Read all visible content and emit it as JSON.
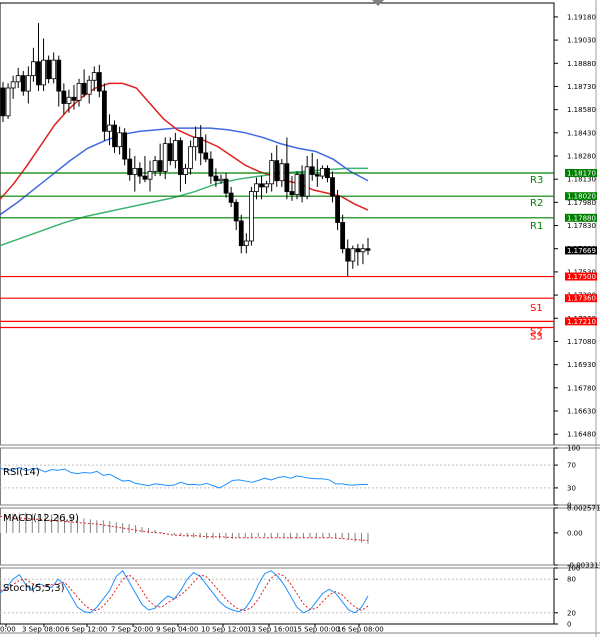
{
  "chart_data": [
    {
      "panel": "price",
      "type": "candlestick",
      "y_ticks": [
        "1.19180",
        "1.19030",
        "1.18880",
        "1.18730",
        "1.18580",
        "1.18430",
        "1.18280",
        "1.18130",
        "1.17980",
        "1.17830",
        "1.17680",
        "1.17530",
        "1.17380",
        "1.17230",
        "1.17080",
        "1.16930",
        "1.16780",
        "1.16630",
        "1.16480"
      ],
      "ylim": [
        1.1641,
        1.1927
      ],
      "current_price": "1.17669",
      "candles": [
        [
          1.1872,
          1.1876,
          1.185,
          1.1854
        ],
        [
          1.1854,
          1.1875,
          1.1852,
          1.1872
        ],
        [
          1.1872,
          1.188,
          1.1865,
          1.1876
        ],
        [
          1.1876,
          1.1885,
          1.1872,
          1.188
        ],
        [
          1.188,
          1.1883,
          1.1867,
          1.187
        ],
        [
          1.187,
          1.1886,
          1.1862,
          1.188
        ],
        [
          1.188,
          1.1898,
          1.1876,
          1.1889
        ],
        [
          1.1889,
          1.1914,
          1.187,
          1.1874
        ],
        [
          1.1874,
          1.1904,
          1.187,
          1.189
        ],
        [
          1.189,
          1.1893,
          1.1875,
          1.1878
        ],
        [
          1.1878,
          1.1895,
          1.1875,
          1.189
        ],
        [
          1.189,
          1.1893,
          1.186,
          1.187
        ],
        [
          1.187,
          1.1875,
          1.1855,
          1.1862
        ],
        [
          1.1862,
          1.1871,
          1.1856,
          1.1866
        ],
        [
          1.1866,
          1.1874,
          1.1858,
          1.1864
        ],
        [
          1.1864,
          1.1878,
          1.186,
          1.1875
        ],
        [
          1.1875,
          1.1884,
          1.1866,
          1.1868
        ],
        [
          1.1868,
          1.188,
          1.1862,
          1.1877
        ],
        [
          1.1877,
          1.1886,
          1.187,
          1.1882
        ],
        [
          1.1882,
          1.1887,
          1.1866,
          1.187
        ],
        [
          1.187,
          1.1875,
          1.1838,
          1.1844
        ],
        [
          1.1844,
          1.1855,
          1.1835,
          1.1848
        ],
        [
          1.1848,
          1.1851,
          1.183,
          1.1834
        ],
        [
          1.1834,
          1.1847,
          1.1829,
          1.1843
        ],
        [
          1.1843,
          1.1846,
          1.1822,
          1.1826
        ],
        [
          1.1826,
          1.1833,
          1.1812,
          1.1816
        ],
        [
          1.1816,
          1.1828,
          1.1805,
          1.182
        ],
        [
          1.182,
          1.1824,
          1.181,
          1.1815
        ],
        [
          1.1815,
          1.1828,
          1.1811,
          1.1813
        ],
        [
          1.1813,
          1.1825,
          1.1805,
          1.1818
        ],
        [
          1.1818,
          1.1828,
          1.1815,
          1.1825
        ],
        [
          1.1825,
          1.1836,
          1.1815,
          1.1818
        ],
        [
          1.1818,
          1.184,
          1.1813,
          1.1836
        ],
        [
          1.1836,
          1.184,
          1.1822,
          1.1825
        ],
        [
          1.1825,
          1.1843,
          1.182,
          1.1838
        ],
        [
          1.1838,
          1.184,
          1.1805,
          1.1816
        ],
        [
          1.1816,
          1.1823,
          1.181,
          1.182
        ],
        [
          1.182,
          1.1838,
          1.1816,
          1.1834
        ],
        [
          1.1834,
          1.1847,
          1.1825,
          1.184
        ],
        [
          1.184,
          1.1848,
          1.1822,
          1.183
        ],
        [
          1.183,
          1.1842,
          1.1824,
          1.1826
        ],
        [
          1.1826,
          1.1831,
          1.181,
          1.1815
        ],
        [
          1.1815,
          1.182,
          1.1808,
          1.1812
        ],
        [
          1.1812,
          1.1816,
          1.181,
          1.1813
        ],
        [
          1.1813,
          1.1817,
          1.1801,
          1.1804
        ],
        [
          1.1804,
          1.1808,
          1.1795,
          1.1798
        ],
        [
          1.1798,
          1.18,
          1.178,
          1.1786
        ],
        [
          1.1786,
          1.179,
          1.1765,
          1.177
        ],
        [
          1.177,
          1.1778,
          1.1765,
          1.1773
        ],
        [
          1.1773,
          1.1808,
          1.177,
          1.1805
        ],
        [
          1.1805,
          1.1814,
          1.18,
          1.181
        ],
        [
          1.181,
          1.1815,
          1.18,
          1.1808
        ],
        [
          1.1808,
          1.1812,
          1.1804,
          1.181
        ],
        [
          1.181,
          1.183,
          1.1805,
          1.1825
        ],
        [
          1.1825,
          1.1835,
          1.1808,
          1.1812
        ],
        [
          1.1812,
          1.1826,
          1.1808,
          1.1823
        ],
        [
          1.1823,
          1.184,
          1.18,
          1.1805
        ],
        [
          1.1805,
          1.1815,
          1.1799,
          1.1803
        ],
        [
          1.1803,
          1.1818,
          1.18,
          1.1816
        ],
        [
          1.1816,
          1.1822,
          1.1798,
          1.1802
        ],
        [
          1.1802,
          1.1828,
          1.18,
          1.1821
        ],
        [
          1.1821,
          1.183,
          1.1812,
          1.1816
        ],
        [
          1.1816,
          1.1826,
          1.1808,
          1.1815
        ],
        [
          1.1815,
          1.1822,
          1.1813,
          1.182
        ],
        [
          1.182,
          1.1822,
          1.1811,
          1.1814
        ],
        [
          1.1814,
          1.1818,
          1.1798,
          1.1802
        ],
        [
          1.1802,
          1.1806,
          1.178,
          1.1785
        ],
        [
          1.1785,
          1.179,
          1.1765,
          1.1768
        ],
        [
          1.1768,
          1.1774,
          1.175,
          1.176
        ],
        [
          1.176,
          1.177,
          1.1755,
          1.1768
        ],
        [
          1.1768,
          1.1771,
          1.1757,
          1.1766
        ],
        [
          1.1766,
          1.1771,
          1.1758,
          1.1768
        ],
        [
          1.1768,
          1.1775,
          1.1764,
          1.1767
        ]
      ],
      "ma_fast": [
        1.18,
        1.181,
        1.1822,
        1.1835,
        1.1848,
        1.1858,
        1.1866,
        1.1872,
        1.1875,
        1.1875,
        1.1872,
        1.1862,
        1.1852,
        1.1845,
        1.1841,
        1.1838,
        1.1834,
        1.1828,
        1.1822,
        1.1818,
        1.1815,
        1.1812,
        1.181,
        1.1806,
        1.1804,
        1.1802,
        1.1797,
        1.1793
      ],
      "ma_slow": [
        1.179,
        1.1798,
        1.1807,
        1.1816,
        1.1825,
        1.1833,
        1.1838,
        1.1842,
        1.1844,
        1.1845,
        1.1846,
        1.1846,
        1.1846,
        1.1845,
        1.1843,
        1.184,
        1.1836,
        1.1833,
        1.1831,
        1.1826,
        1.1818,
        1.1812
      ],
      "ma_green": [
        1.177,
        1.1775,
        1.178,
        1.1785,
        1.1789,
        1.1792,
        1.1795,
        1.1798,
        1.1801,
        1.1805,
        1.181,
        1.1813,
        1.1815,
        1.1817,
        1.1818,
        1.1819,
        1.182,
        1.182
      ],
      "levels": [
        {
          "name": "R3",
          "price": 1.1817,
          "label": "1.18170",
          "color": "#008000"
        },
        {
          "name": "R2",
          "price": 1.1802,
          "label": "1.18020",
          "color": "#008000"
        },
        {
          "name": "R1",
          "price": 1.1788,
          "label": "1.17880",
          "color": "#008000"
        },
        {
          "name": "",
          "price": 1.175,
          "label": "1.17500",
          "color": "#ff0000"
        },
        {
          "name": "S1",
          "price": 1.1736,
          "label": "1.17360",
          "color": "#ff0000"
        },
        {
          "name": "S2",
          "price": 1.1721,
          "label": "1.17210",
          "color": "#ff0000"
        },
        {
          "name": "S3",
          "price": null,
          "label": "",
          "color": "#ff0000"
        }
      ]
    },
    {
      "panel": "rsi",
      "type": "line",
      "title": "RSI(14)",
      "y_ticks": [
        "100",
        "70",
        "30",
        "0"
      ],
      "ylim": [
        0,
        100
      ],
      "values": [
        64,
        62,
        61,
        66,
        60,
        64,
        63,
        58,
        62,
        61,
        63,
        57,
        55,
        57,
        56,
        59,
        52,
        54,
        48,
        42,
        43,
        38,
        36,
        34,
        37,
        36,
        34,
        35,
        40,
        36,
        36,
        35,
        38,
        34,
        30,
        36,
        43,
        44,
        42,
        40,
        43,
        47,
        44,
        48,
        50,
        47,
        51,
        49,
        47,
        46,
        46,
        44,
        37,
        37,
        35,
        35,
        36,
        36
      ]
    },
    {
      "panel": "macd",
      "type": "bar+line",
      "title": "MACD(12,26,9)",
      "y_ticks": [
        "0.002571",
        "0.00",
        "-0.003317"
      ],
      "ylim": [
        -0.003317,
        0.002571
      ],
      "histogram": [
        0.0018,
        0.0019,
        0.002,
        0.002,
        0.0021,
        0.002,
        0.0019,
        0.002,
        0.0019,
        0.0019,
        0.0018,
        0.0017,
        0.0016,
        0.0015,
        0.0014,
        0.0013,
        0.0013,
        0.0012,
        0.0011,
        0.001,
        0.0009,
        0.0008,
        0.0006,
        0.0005,
        0.0003,
        0.0001,
        0.0,
        -0.0002,
        -0.0003,
        -0.0004,
        -0.0005,
        -0.0005,
        -0.0006,
        -0.0006,
        -0.0006,
        -0.0006,
        -0.0006,
        -0.0005,
        -0.0005,
        -0.0005,
        -0.0004,
        -0.0004,
        -0.0005,
        -0.0005,
        -0.0005,
        -0.0006,
        -0.0006,
        -0.0005,
        -0.0005,
        -0.0005,
        -0.0005,
        -0.0005,
        -0.0006,
        -0.0006,
        -0.0007,
        -0.0009,
        -0.001,
        -0.0011
      ],
      "signal": [
        0.0017,
        0.0016,
        0.0015,
        0.0014,
        0.0013,
        0.0012,
        0.0011,
        0.001,
        0.0009,
        0.0007,
        0.0005,
        0.0003,
        0.0001,
        0.0,
        -0.0002,
        -0.0003,
        -0.0003,
        -0.0004,
        -0.0004,
        -0.0005,
        -0.0005,
        -0.0005,
        -0.0005,
        -0.0005,
        -0.0005,
        -0.0005,
        -0.0005,
        -0.0005,
        -0.0006,
        -0.0007,
        -0.0008
      ]
    },
    {
      "panel": "stoch",
      "type": "line",
      "title": "Stoch(5,5,3)",
      "y_ticks": [
        "100",
        "80",
        "20",
        "0"
      ],
      "ylim": [
        0,
        100
      ],
      "main": [
        55,
        65,
        80,
        88,
        70,
        60,
        72,
        68,
        65,
        80,
        70,
        50,
        30,
        22,
        20,
        30,
        45,
        60,
        85,
        95,
        75,
        55,
        35,
        25,
        28,
        40,
        50,
        45,
        60,
        80,
        92,
        85,
        70,
        55,
        40,
        30,
        25,
        22,
        28,
        45,
        70,
        90,
        95,
        85,
        70,
        50,
        30,
        20,
        25,
        40,
        55,
        62,
        55,
        40,
        25,
        20,
        30,
        50
      ],
      "signal": [
        60,
        62,
        70,
        78,
        80,
        72,
        66,
        68,
        70,
        72,
        75,
        62,
        48,
        35,
        26,
        24,
        32,
        45,
        62,
        80,
        88,
        78,
        60,
        42,
        32,
        30,
        38,
        45,
        52,
        62,
        75,
        88,
        84,
        72,
        58,
        44,
        34,
        26,
        24,
        30,
        44,
        64,
        82,
        90,
        86,
        72,
        54,
        36,
        26,
        28,
        40,
        52,
        58,
        52,
        40,
        30,
        24,
        32
      ]
    },
    {
      "panel": "time_axis",
      "type": "table",
      "x_tick_labels": [
        "0:00",
        "3 Sep 08:00",
        "6 Sep 12:00",
        "7 Sep 20:00",
        "9 Sep 04:00",
        "10 Sep 12:00",
        "13 Sep 16:00",
        "15 Sep 00:00",
        "16 Sep 08:00"
      ]
    }
  ]
}
